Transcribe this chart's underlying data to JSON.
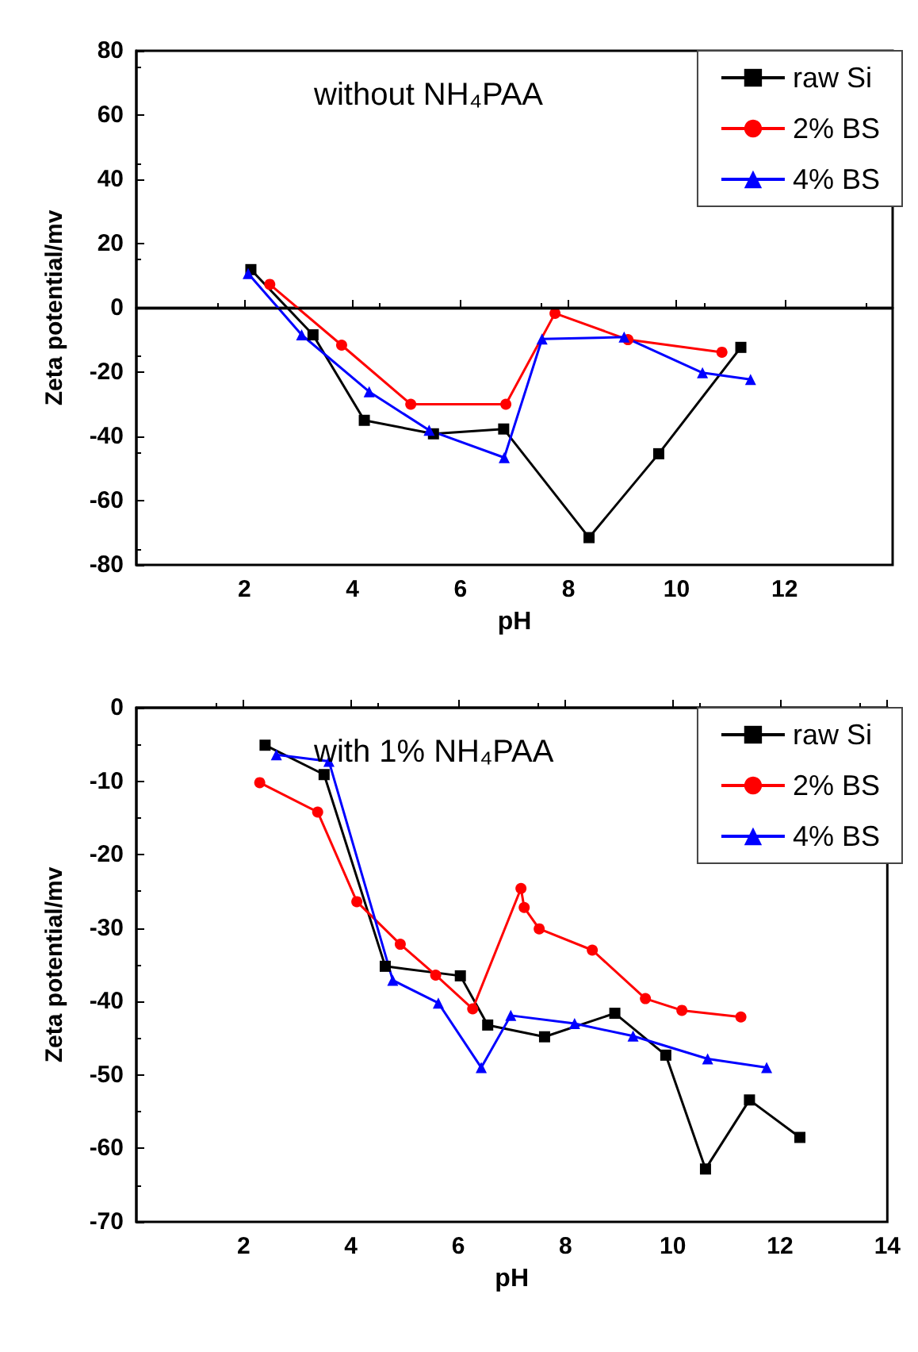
{
  "chart_data": [
    {
      "type": "line",
      "xlabel": "pH",
      "ylabel": "Zeta potential/mv",
      "annotations": [
        "without NH₄PAA"
      ],
      "xlim": [
        0,
        14
      ],
      "xticks": [
        2,
        4,
        6,
        8,
        10,
        12
      ],
      "ylim": [
        -80,
        80
      ],
      "yticks": [
        -80,
        -60,
        -40,
        -20,
        0,
        20,
        40,
        60,
        80
      ],
      "grid": false,
      "legend": "top right",
      "ref_lines": [
        {
          "axis": "y",
          "value": 0,
          "color": "#000000",
          "line_style": "solid"
        }
      ],
      "series": [
        {
          "name": "raw Si",
          "color": "#000000",
          "marker": "square",
          "x": [
            2.12,
            3.27,
            4.22,
            5.5,
            6.8,
            8.38,
            9.67,
            11.19
          ],
          "values": [
            11.9,
            -8.4,
            -35,
            -39.2,
            -37.7,
            -71.5,
            -45.4,
            -12.3
          ]
        },
        {
          "name": "2% BS",
          "color": "#ff0000",
          "marker": "circle",
          "x": [
            2.47,
            3.8,
            5.08,
            6.84,
            7.75,
            9.1,
            10.84
          ],
          "values": [
            7.3,
            -11.6,
            -30,
            -30,
            -1.7,
            -9.9,
            -13.8
          ]
        },
        {
          "name": "4% BS",
          "color": "#0000ff",
          "marker": "triangle",
          "x": [
            2.07,
            3.06,
            4.31,
            5.42,
            6.81,
            7.51,
            9.03,
            10.48,
            11.37
          ],
          "values": [
            10.7,
            -8.4,
            -26.1,
            -38.1,
            -46.6,
            -9.7,
            -9.1,
            -20.2,
            -22.3
          ]
        }
      ]
    },
    {
      "type": "line",
      "xlabel": "pH",
      "ylabel": "Zeta potential/mv",
      "annotations": [
        "with 1% NH₄PAA"
      ],
      "xlim": [
        0,
        14
      ],
      "xticks": [
        2,
        4,
        6,
        8,
        10,
        12,
        14
      ],
      "ylim": [
        -70,
        0
      ],
      "yticks": [
        -70,
        -60,
        -50,
        -40,
        -30,
        -20,
        -10,
        0
      ],
      "grid": false,
      "legend": "top right",
      "series": [
        {
          "name": "raw Si",
          "color": "#000000",
          "marker": "square",
          "x": [
            2.4,
            3.5,
            4.64,
            6.04,
            6.55,
            7.61,
            8.92,
            9.87,
            10.61,
            11.43,
            12.37
          ],
          "values": [
            -5.1,
            -9.1,
            -35.2,
            -36.5,
            -43.2,
            -44.8,
            -41.6,
            -47.3,
            -62.8,
            -53.4,
            -58.5
          ]
        },
        {
          "name": "2% BS",
          "color": "#ff0000",
          "marker": "circle",
          "x": [
            2.3,
            3.38,
            4.11,
            4.92,
            5.58,
            6.27,
            7.17,
            7.23,
            7.51,
            8.5,
            9.49,
            10.17,
            11.27
          ],
          "values": [
            -10.2,
            -14.2,
            -26.4,
            -32.2,
            -36.4,
            -41,
            -24.6,
            -27.2,
            -30.1,
            -33,
            -39.6,
            -41.2,
            -42.1
          ]
        },
        {
          "name": "4% BS",
          "color": "#0000ff",
          "marker": "triangle",
          "x": [
            2.61,
            3.59,
            4.78,
            5.63,
            6.43,
            6.98,
            8.17,
            9.26,
            10.65,
            11.75
          ],
          "values": [
            -6.4,
            -7.3,
            -37.1,
            -40.2,
            -49,
            -41.9,
            -43,
            -44.7,
            -47.8,
            -49
          ]
        }
      ]
    }
  ]
}
